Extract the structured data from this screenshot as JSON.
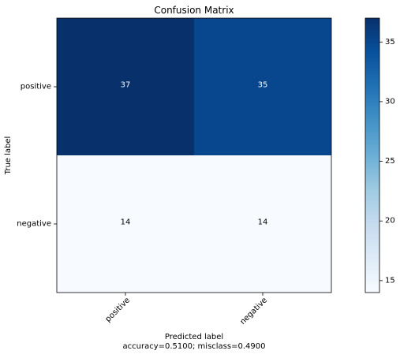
{
  "chart_data": {
    "type": "heatmap",
    "title": "Confusion Matrix",
    "xlabel": "Predicted label",
    "xlabel_sub": "accuracy=0.5100; misclass=0.4900",
    "ylabel": "True label",
    "x_categories": [
      "positive",
      "negative"
    ],
    "y_categories": [
      "positive",
      "negative"
    ],
    "values": [
      [
        37,
        35
      ],
      [
        14,
        14
      ]
    ],
    "colormap": "Blues",
    "value_range": [
      14,
      37
    ],
    "colorbar_ticks": [
      15,
      20,
      25,
      30,
      35
    ],
    "grid": false,
    "colors": {
      "low": "#f7fbff",
      "high": "#08306b"
    }
  }
}
